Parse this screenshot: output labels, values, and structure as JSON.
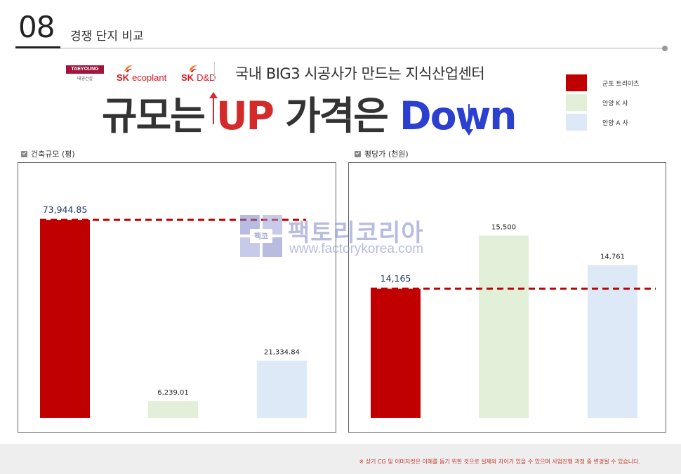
{
  "header": {
    "number": "08",
    "title": "경쟁 단지 비교"
  },
  "logos": {
    "taeyoung": "TAEYOUNG",
    "taeyoung_sub": "태영건설",
    "sk1_mark": "SK",
    "sk1_text": "ecoplant",
    "sk2_mark": "SK",
    "sk2_text": "D&D"
  },
  "headline": "국내 BIG3 시공사가 만드는 지식산업센터",
  "slogan": {
    "part1": "규모는 ",
    "up": "UP",
    "part2": " 가격은 ",
    "down": "Down"
  },
  "legend": [
    {
      "label": "군포 트리아츠",
      "color": "#c00000"
    },
    {
      "label": "안양 K 사",
      "color": "#e2efd9"
    },
    {
      "label": "안양 A 사",
      "color": "#dde9f6"
    }
  ],
  "watermark": {
    "mark": "팩코",
    "brand": "팩토리코리아",
    "url": "www.factorykorea.com"
  },
  "chart_data": [
    {
      "type": "bar",
      "title": "건축규모 (평)",
      "categories": [
        "군포 트리아츠",
        "안양 K 사",
        "안양 A 사"
      ],
      "values": [
        73944.85,
        6239.01,
        21334.84
      ],
      "value_labels": [
        "73,944.85",
        "6,239.01",
        "21,334.84"
      ],
      "colors": [
        "#c00000",
        "#e2efd9",
        "#dde9f6"
      ],
      "ylim": [
        0,
        80000
      ],
      "reference_line": 73944.85,
      "grid": false
    },
    {
      "type": "bar",
      "title": "평당가 (천원)",
      "categories": [
        "군포 트리아츠",
        "안양 K 사",
        "안양 A 사"
      ],
      "values": [
        14165,
        15500,
        14761
      ],
      "value_labels": [
        "14,165",
        "15,500",
        "14,761"
      ],
      "colors": [
        "#c00000",
        "#e2efd9",
        "#dde9f6"
      ],
      "ylim": [
        10920,
        16320
      ],
      "reference_line": 14165,
      "grid": false
    }
  ],
  "footer_note": "※ 상기 CG 및 이미지컷은 이해를 돕기 위한 것으로 실제와 차이가 있을 수 있으며 사업진행 과정 중 변경될 수 있습니다."
}
